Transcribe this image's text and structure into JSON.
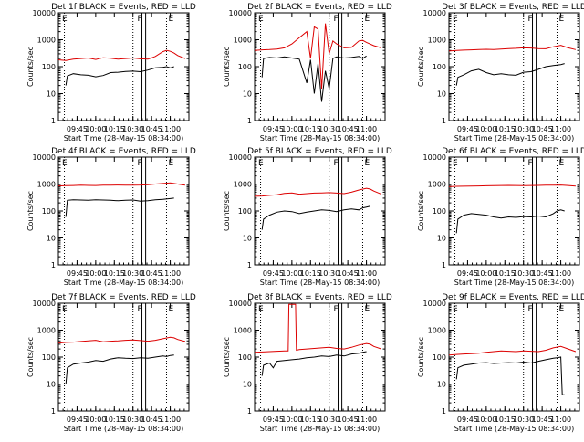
{
  "colors": {
    "events": "#000000",
    "lld": "#dd0000",
    "frame": "#000000",
    "grid": "#000000"
  },
  "figure": {
    "xlabel": "Start Time (28-May-15 08:34:00)",
    "ylabel": "Counts/sec",
    "x_ticks": [
      "09:45",
      "10:00",
      "10:15",
      "10:30",
      "10:45",
      "11:00"
    ],
    "y_ticks": [
      "1",
      "10",
      "100",
      "1000",
      "10000"
    ],
    "marker_F": "F",
    "marker_E": "E"
  },
  "chart_data": [
    {
      "type": "line",
      "title": "Det 1f BLACK = Events, RED = LLD",
      "xlim": [
        9.5,
        11.25
      ],
      "ylim": [
        1,
        10000
      ],
      "yscale": "log",
      "series": [
        {
          "name": "BLACK = Events",
          "x": [
            9.6,
            9.62,
            9.7,
            9.8,
            9.9,
            10.0,
            10.1,
            10.2,
            10.3,
            10.4,
            10.5,
            10.6,
            10.7,
            10.8,
            10.9,
            10.95,
            11.0,
            11.05
          ],
          "y": [
            20,
            45,
            55,
            50,
            48,
            42,
            47,
            60,
            62,
            66,
            68,
            65,
            75,
            90,
            95,
            100,
            90,
            100
          ]
        },
        {
          "name": "RED = LLD",
          "x": [
            9.5,
            9.6,
            9.7,
            9.8,
            9.9,
            10.0,
            10.1,
            10.2,
            10.3,
            10.4,
            10.5,
            10.6,
            10.7,
            10.8,
            10.9,
            10.95,
            11.0,
            11.05,
            11.1,
            11.2
          ],
          "y": [
            180,
            170,
            190,
            200,
            210,
            185,
            215,
            205,
            190,
            200,
            210,
            195,
            190,
            240,
            360,
            400,
            370,
            320,
            260,
            200
          ]
        }
      ],
      "verticals": {
        "dotted_x": [
          9.58,
          10.5,
          10.95
        ],
        "box_x": [
          10.62,
          10.67
        ]
      }
    },
    {
      "type": "line",
      "title": "Det 2f BLACK = Events, RED = LLD",
      "xlim": [
        9.5,
        11.25
      ],
      "ylim": [
        1,
        10000
      ],
      "yscale": "log",
      "series": [
        {
          "name": "BLACK = Events",
          "x": [
            9.6,
            9.62,
            9.7,
            9.8,
            9.9,
            10.0,
            10.1,
            10.2,
            10.25,
            10.3,
            10.35,
            10.4,
            10.45,
            10.5,
            10.55,
            10.6,
            10.7,
            10.8,
            10.9,
            10.95,
            11.0
          ],
          "y": [
            40,
            200,
            220,
            210,
            230,
            210,
            190,
            25,
            180,
            10,
            130,
            5,
            70,
            15,
            200,
            230,
            210,
            220,
            240,
            200,
            250
          ]
        },
        {
          "name": "RED = LLD",
          "x": [
            9.5,
            9.6,
            9.7,
            9.8,
            9.9,
            10.0,
            10.1,
            10.2,
            10.25,
            10.3,
            10.35,
            10.4,
            10.45,
            10.5,
            10.55,
            10.6,
            10.7,
            10.8,
            10.9,
            10.95,
            11.0,
            11.1,
            11.2
          ],
          "y": [
            400,
            420,
            430,
            450,
            500,
            700,
            1200,
            2000,
            200,
            3000,
            2500,
            15,
            4000,
            300,
            900,
            700,
            500,
            520,
            900,
            950,
            800,
            600,
            500
          ]
        }
      ],
      "verticals": {
        "dotted_x": [
          9.58,
          10.5,
          10.95
        ],
        "box_x": [
          10.62,
          10.67
        ]
      }
    },
    {
      "type": "line",
      "title": "Det 3f BLACK = Events, RED = LLD",
      "xlim": [
        9.5,
        11.25
      ],
      "ylim": [
        1,
        10000
      ],
      "yscale": "log",
      "series": [
        {
          "name": "BLACK = Events",
          "x": [
            9.6,
            9.62,
            9.7,
            9.8,
            9.9,
            10.0,
            10.1,
            10.2,
            10.3,
            10.4,
            10.5,
            10.6,
            10.7,
            10.8,
            10.9,
            10.95,
            11.0,
            11.05
          ],
          "y": [
            20,
            40,
            50,
            70,
            80,
            60,
            50,
            55,
            50,
            48,
            62,
            65,
            80,
            100,
            110,
            115,
            120,
            130
          ]
        },
        {
          "name": "RED = LLD",
          "x": [
            9.5,
            9.6,
            9.7,
            9.8,
            9.9,
            10.0,
            10.1,
            10.2,
            10.3,
            10.4,
            10.5,
            10.6,
            10.7,
            10.8,
            10.9,
            11.0,
            11.1,
            11.2
          ],
          "y": [
            380,
            400,
            410,
            420,
            430,
            440,
            430,
            450,
            470,
            480,
            500,
            490,
            470,
            460,
            550,
            620,
            500,
            430
          ]
        }
      ],
      "verticals": {
        "dotted_x": [
          9.58,
          10.5,
          10.95
        ],
        "box_x": [
          10.62,
          10.67
        ]
      }
    },
    {
      "type": "line",
      "title": "Det 4f BLACK = Events, RED = LLD",
      "xlim": [
        9.5,
        11.25
      ],
      "ylim": [
        1,
        10000
      ],
      "yscale": "log",
      "series": [
        {
          "name": "BLACK = Events",
          "x": [
            9.6,
            9.62,
            9.7,
            9.8,
            9.9,
            10.0,
            10.1,
            10.2,
            10.3,
            10.4,
            10.5,
            10.6,
            10.7,
            10.8,
            10.9,
            11.0,
            11.05
          ],
          "y": [
            60,
            250,
            260,
            255,
            250,
            260,
            255,
            250,
            240,
            250,
            255,
            230,
            240,
            260,
            270,
            290,
            300
          ]
        },
        {
          "name": "RED = LLD",
          "x": [
            9.5,
            9.6,
            9.7,
            9.8,
            9.9,
            10.0,
            10.1,
            10.2,
            10.3,
            10.4,
            10.5,
            10.6,
            10.7,
            10.8,
            10.9,
            11.0,
            11.1,
            11.2
          ],
          "y": [
            850,
            870,
            880,
            900,
            890,
            880,
            900,
            910,
            920,
            910,
            900,
            920,
            950,
            1000,
            1050,
            1100,
            1000,
            900
          ]
        }
      ],
      "verticals": {
        "dotted_x": [
          9.58,
          10.5,
          10.95
        ],
        "box_x": [
          10.62,
          10.67
        ]
      }
    },
    {
      "type": "line",
      "title": "Det 5f BLACK = Events, RED = LLD",
      "xlim": [
        9.5,
        11.25
      ],
      "ylim": [
        1,
        10000
      ],
      "yscale": "log",
      "series": [
        {
          "name": "BLACK = Events",
          "x": [
            9.6,
            9.62,
            9.7,
            9.8,
            9.9,
            10.0,
            10.1,
            10.2,
            10.3,
            10.4,
            10.5,
            10.6,
            10.7,
            10.8,
            10.9,
            10.95,
            11.0,
            11.05
          ],
          "y": [
            20,
            50,
            70,
            90,
            100,
            95,
            80,
            90,
            100,
            110,
            105,
            95,
            110,
            120,
            110,
            130,
            140,
            150
          ]
        },
        {
          "name": "RED = LLD",
          "x": [
            9.5,
            9.6,
            9.7,
            9.8,
            9.9,
            10.0,
            10.1,
            10.2,
            10.3,
            10.4,
            10.5,
            10.6,
            10.7,
            10.8,
            10.9,
            11.0,
            11.05,
            11.1,
            11.2
          ],
          "y": [
            350,
            360,
            380,
            400,
            450,
            470,
            420,
            440,
            460,
            470,
            480,
            460,
            440,
            500,
            600,
            700,
            650,
            550,
            420
          ]
        }
      ],
      "verticals": {
        "dotted_x": [
          9.58,
          10.5,
          10.95
        ],
        "box_x": [
          10.62,
          10.67
        ]
      }
    },
    {
      "type": "line",
      "title": "Det 6f BLACK = Events, RED = LLD",
      "xlim": [
        9.5,
        11.25
      ],
      "ylim": [
        1,
        10000
      ],
      "yscale": "log",
      "series": [
        {
          "name": "BLACK = Events",
          "x": [
            9.6,
            9.62,
            9.7,
            9.8,
            9.9,
            10.0,
            10.1,
            10.2,
            10.3,
            10.4,
            10.5,
            10.6,
            10.7,
            10.8,
            10.9,
            10.95,
            11.0,
            11.05
          ],
          "y": [
            15,
            50,
            70,
            80,
            75,
            70,
            60,
            55,
            60,
            58,
            62,
            60,
            65,
            60,
            80,
            100,
            110,
            100
          ]
        },
        {
          "name": "RED = LLD",
          "x": [
            9.5,
            9.6,
            9.7,
            9.8,
            9.9,
            10.0,
            10.1,
            10.2,
            10.3,
            10.4,
            10.5,
            10.6,
            10.7,
            10.8,
            10.9,
            11.0,
            11.1,
            11.2
          ],
          "y": [
            800,
            820,
            830,
            840,
            850,
            860,
            870,
            880,
            890,
            880,
            870,
            880,
            890,
            900,
            910,
            920,
            880,
            840
          ]
        }
      ],
      "verticals": {
        "dotted_x": [
          9.58,
          10.5,
          10.95
        ],
        "box_x": [
          10.62,
          10.67
        ]
      }
    },
    {
      "type": "line",
      "title": "Det 7f BLACK = Events, RED = LLD",
      "xlim": [
        9.5,
        11.25
      ],
      "ylim": [
        1,
        10000
      ],
      "yscale": "log",
      "series": [
        {
          "name": "BLACK = Events",
          "x": [
            9.6,
            9.62,
            9.7,
            9.8,
            9.9,
            10.0,
            10.1,
            10.2,
            10.3,
            10.4,
            10.5,
            10.6,
            10.7,
            10.8,
            10.9,
            10.95,
            11.0,
            11.05
          ],
          "y": [
            10,
            40,
            55,
            60,
            65,
            75,
            70,
            85,
            95,
            90,
            88,
            95,
            90,
            100,
            110,
            105,
            115,
            120
          ]
        },
        {
          "name": "RED = LLD",
          "x": [
            9.5,
            9.6,
            9.7,
            9.8,
            9.9,
            10.0,
            10.1,
            10.2,
            10.3,
            10.4,
            10.5,
            10.6,
            10.7,
            10.8,
            10.9,
            11.0,
            11.05,
            11.1,
            11.2
          ],
          "y": [
            330,
            350,
            360,
            380,
            400,
            420,
            370,
            390,
            400,
            420,
            430,
            410,
            390,
            420,
            480,
            550,
            520,
            450,
            380
          ]
        }
      ],
      "verticals": {
        "dotted_x": [
          9.58,
          10.5,
          10.95
        ],
        "box_x": [
          10.62,
          10.67
        ]
      }
    },
    {
      "type": "line",
      "title": "Det 8f BLACK = Events, RED = LLD",
      "xlim": [
        9.5,
        11.25
      ],
      "ylim": [
        1,
        10000
      ],
      "yscale": "log",
      "series": [
        {
          "name": "BLACK = Events",
          "x": [
            9.6,
            9.62,
            9.7,
            9.75,
            9.8,
            9.9,
            10.0,
            10.1,
            10.2,
            10.3,
            10.4,
            10.5,
            10.6,
            10.7,
            10.8,
            10.9,
            10.95,
            11.0
          ],
          "y": [
            20,
            50,
            60,
            40,
            70,
            75,
            80,
            85,
            95,
            100,
            110,
            105,
            120,
            110,
            130,
            140,
            150,
            160
          ]
        },
        {
          "name": "RED = LLD",
          "x": [
            9.5,
            9.6,
            9.7,
            9.8,
            9.9,
            9.95,
            9.96,
            10.0,
            10.05,
            10.06,
            10.1,
            10.2,
            10.3,
            10.4,
            10.5,
            10.6,
            10.7,
            10.8,
            10.9,
            11.0,
            11.05,
            11.1,
            11.2
          ],
          "y": [
            150,
            155,
            160,
            165,
            170,
            170,
            9000,
            9000,
            9000,
            180,
            190,
            200,
            210,
            220,
            230,
            210,
            200,
            230,
            280,
            320,
            300,
            250,
            200
          ]
        }
      ],
      "verticals": {
        "dotted_x": [
          9.58,
          10.5,
          10.95
        ],
        "box_x": [
          10.62,
          10.67
        ]
      }
    },
    {
      "type": "line",
      "title": "Det 9f BLACK = Events, RED = LLD",
      "xlim": [
        9.5,
        11.25
      ],
      "ylim": [
        1,
        10000
      ],
      "yscale": "log",
      "series": [
        {
          "name": "BLACK = Events",
          "x": [
            9.6,
            9.62,
            9.7,
            9.8,
            9.9,
            10.0,
            10.1,
            10.2,
            10.3,
            10.4,
            10.5,
            10.6,
            10.7,
            10.8,
            10.9,
            10.95,
            11.0,
            11.02,
            11.05
          ],
          "y": [
            15,
            40,
            50,
            55,
            60,
            62,
            58,
            60,
            62,
            60,
            65,
            60,
            70,
            80,
            90,
            95,
            100,
            4,
            4
          ]
        },
        {
          "name": "RED = LLD",
          "x": [
            9.5,
            9.6,
            9.7,
            9.8,
            9.9,
            10.0,
            10.1,
            10.2,
            10.3,
            10.4,
            10.5,
            10.6,
            10.7,
            10.8,
            10.9,
            11.0,
            11.1,
            11.2
          ],
          "y": [
            120,
            125,
            130,
            135,
            140,
            150,
            160,
            170,
            165,
            160,
            170,
            165,
            160,
            180,
            220,
            250,
            200,
            160
          ]
        }
      ],
      "verticals": {
        "dotted_x": [
          9.58,
          10.5,
          10.95
        ],
        "box_x": [
          10.62,
          10.67
        ]
      }
    }
  ]
}
